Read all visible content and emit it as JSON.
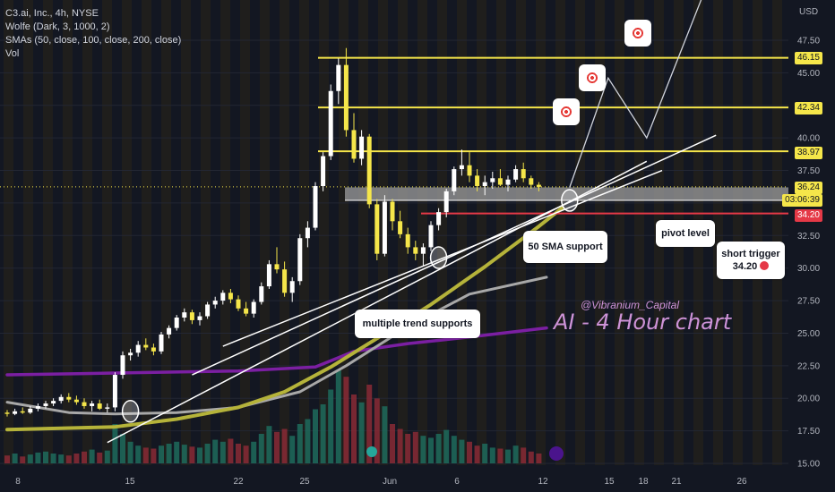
{
  "legend": {
    "symbol_line": "C3.ai, Inc., 4h, NYSE",
    "wolfe": "Wolfe (Dark, 3, 1000, 2)",
    "smas": "SMAs (50, close, 100, close, 200, close)",
    "vol": "Vol"
  },
  "price_axis": {
    "currency": "USD",
    "ticks": [
      "47.50",
      "45.00",
      "42.50",
      "40.00",
      "37.50",
      "35.00",
      "32.50",
      "30.00",
      "27.50",
      "25.00",
      "22.50",
      "20.00",
      "17.50",
      "15.00"
    ]
  },
  "price_tags": {
    "l1": "46.15",
    "l2": "42.34",
    "l3": "38.97",
    "last": "36.24",
    "countdown": "03:06:39",
    "red": "34.20"
  },
  "time_axis": {
    "ticks": [
      "8",
      "15",
      "22",
      "25",
      "Jun",
      "6",
      "12",
      "15",
      "18",
      "21",
      "26"
    ]
  },
  "annotations": {
    "trend": "multiple trend supports",
    "sma": "50 SMA support",
    "pivot": "pivot level",
    "short": "short trigger",
    "short_val": "34.20",
    "watermark": "@Vibranium_Capital",
    "big": "AI - 4 Hour chart"
  },
  "colors": {
    "background": "#131722",
    "up": "#ffffff",
    "down": "#f5e64a",
    "sma50": "#b5b33a",
    "sma100": "#a8a8a8",
    "sma200": "#7b1fa2",
    "resistance": "#f5e64a",
    "short_line": "#e53947",
    "pivot_band": "#9e9e9e",
    "watermark": "#ce93d8"
  },
  "chart_data": {
    "type": "candlestick",
    "title": "C3.ai, Inc., 4h, NYSE",
    "ylim": [
      15,
      50
    ],
    "horizontal_levels": [
      46.15,
      42.34,
      38.97,
      34.2
    ],
    "last_price": 36.24,
    "pivot_band": [
      35.2,
      36.2
    ],
    "candles": [
      [
        18.9,
        19.1,
        18.6,
        18.8
      ],
      [
        18.8,
        19.2,
        18.7,
        19.0
      ],
      [
        19.0,
        19.3,
        18.8,
        18.9
      ],
      [
        18.9,
        19.4,
        18.8,
        19.2
      ],
      [
        19.2,
        19.6,
        19.0,
        19.4
      ],
      [
        19.4,
        19.8,
        19.2,
        19.6
      ],
      [
        19.6,
        20.0,
        19.4,
        19.8
      ],
      [
        19.8,
        20.3,
        19.6,
        20.1
      ],
      [
        20.1,
        20.4,
        19.7,
        19.9
      ],
      [
        19.9,
        20.2,
        19.5,
        19.7
      ],
      [
        19.7,
        20.0,
        19.2,
        19.4
      ],
      [
        19.4,
        19.8,
        19.0,
        19.6
      ],
      [
        19.6,
        19.9,
        19.1,
        19.2
      ],
      [
        19.2,
        19.6,
        18.9,
        19.3
      ],
      [
        19.3,
        22.0,
        19.0,
        21.8
      ],
      [
        21.8,
        23.6,
        21.5,
        23.3
      ],
      [
        23.3,
        23.8,
        22.9,
        23.5
      ],
      [
        23.5,
        24.4,
        23.2,
        24.1
      ],
      [
        24.1,
        24.6,
        23.7,
        23.9
      ],
      [
        23.9,
        24.2,
        23.3,
        23.6
      ],
      [
        23.6,
        25.1,
        23.4,
        24.9
      ],
      [
        24.9,
        25.6,
        24.6,
        25.4
      ],
      [
        25.4,
        26.4,
        25.2,
        26.2
      ],
      [
        26.2,
        26.9,
        25.9,
        26.6
      ],
      [
        26.6,
        26.8,
        25.7,
        26.0
      ],
      [
        26.0,
        26.6,
        25.6,
        26.3
      ],
      [
        26.3,
        27.4,
        26.1,
        27.2
      ],
      [
        27.2,
        27.8,
        26.9,
        27.5
      ],
      [
        27.5,
        28.3,
        27.2,
        28.1
      ],
      [
        28.1,
        28.4,
        27.3,
        27.6
      ],
      [
        27.6,
        27.9,
        26.7,
        26.9
      ],
      [
        26.9,
        27.4,
        26.3,
        26.5
      ],
      [
        26.5,
        27.6,
        26.2,
        27.4
      ],
      [
        27.4,
        28.9,
        27.2,
        28.6
      ],
      [
        28.6,
        30.6,
        28.4,
        30.3
      ],
      [
        30.3,
        31.6,
        29.6,
        29.9
      ],
      [
        29.9,
        30.5,
        27.8,
        28.1
      ],
      [
        28.1,
        29.3,
        27.4,
        29.0
      ],
      [
        29.0,
        32.6,
        28.7,
        32.3
      ],
      [
        32.3,
        33.6,
        31.6,
        33.1
      ],
      [
        33.1,
        36.6,
        32.9,
        36.3
      ],
      [
        36.3,
        38.9,
        35.9,
        38.6
      ],
      [
        38.6,
        44.1,
        38.3,
        43.6
      ],
      [
        43.6,
        46.1,
        42.6,
        45.6
      ],
      [
        45.6,
        46.9,
        40.1,
        40.6
      ],
      [
        40.6,
        41.9,
        38.1,
        38.4
      ],
      [
        38.4,
        40.6,
        37.9,
        40.1
      ],
      [
        40.1,
        40.3,
        34.6,
        34.9
      ],
      [
        34.9,
        35.3,
        30.6,
        31.1
      ],
      [
        31.1,
        35.6,
        30.9,
        35.1
      ],
      [
        35.1,
        35.3,
        32.9,
        33.6
      ],
      [
        33.6,
        34.4,
        32.3,
        32.6
      ],
      [
        32.6,
        33.1,
        31.1,
        31.6
      ],
      [
        31.6,
        32.1,
        30.6,
        31.1
      ],
      [
        31.1,
        31.9,
        30.2,
        31.6
      ],
      [
        31.6,
        33.6,
        31.3,
        33.3
      ],
      [
        33.3,
        34.6,
        32.9,
        34.3
      ],
      [
        34.3,
        36.1,
        33.9,
        35.9
      ],
      [
        35.9,
        37.8,
        35.6,
        37.6
      ],
      [
        37.6,
        39.1,
        37.1,
        37.9
      ],
      [
        37.9,
        38.9,
        36.6,
        37.1
      ],
      [
        37.1,
        37.6,
        35.9,
        36.3
      ],
      [
        36.3,
        37.1,
        35.6,
        36.6
      ],
      [
        36.6,
        37.4,
        36.1,
        36.9
      ],
      [
        36.9,
        37.6,
        36.3,
        36.4
      ],
      [
        36.4,
        37.1,
        35.9,
        36.8
      ],
      [
        36.8,
        37.9,
        36.6,
        37.6
      ],
      [
        37.6,
        38.1,
        36.6,
        36.9
      ],
      [
        36.9,
        37.1,
        36.1,
        36.4
      ],
      [
        36.4,
        36.6,
        35.9,
        36.24
      ]
    ],
    "volume_max": 100,
    "volume": [
      8,
      10,
      7,
      9,
      11,
      12,
      10,
      9,
      8,
      10,
      12,
      14,
      11,
      13,
      40,
      30,
      22,
      18,
      16,
      15,
      18,
      20,
      22,
      19,
      17,
      16,
      20,
      24,
      22,
      25,
      20,
      18,
      22,
      30,
      38,
      32,
      35,
      28,
      40,
      45,
      55,
      60,
      75,
      95,
      88,
      70,
      62,
      80,
      66,
      58,
      40,
      35,
      30,
      32,
      28,
      26,
      30,
      34,
      28,
      24,
      22,
      18,
      20,
      16,
      15,
      14,
      18,
      16,
      12,
      10
    ],
    "sma50": [
      [
        0,
        17.6
      ],
      [
        14,
        17.8
      ],
      [
        22,
        18.4
      ],
      [
        30,
        19.3
      ],
      [
        36,
        20.5
      ],
      [
        42,
        22.4
      ],
      [
        48,
        24.6
      ],
      [
        55,
        27.2
      ],
      [
        62,
        30.1
      ],
      [
        69,
        33.2
      ],
      [
        72,
        34.6
      ]
    ],
    "sma100": [
      [
        0,
        19.7
      ],
      [
        8,
        18.9
      ],
      [
        14,
        18.8
      ],
      [
        22,
        18.9
      ],
      [
        30,
        19.3
      ],
      [
        38,
        20.5
      ],
      [
        44,
        22.5
      ],
      [
        52,
        25.5
      ],
      [
        60,
        28.0
      ],
      [
        70,
        29.3
      ]
    ],
    "sma200": [
      [
        0,
        21.8
      ],
      [
        10,
        21.9
      ],
      [
        20,
        22.0
      ],
      [
        30,
        22.1
      ],
      [
        40,
        22.4
      ],
      [
        45,
        23.6
      ],
      [
        52,
        24.2
      ],
      [
        60,
        24.7
      ],
      [
        70,
        25.4
      ]
    ],
    "trendlines": [
      [
        [
          13,
          16.6
        ],
        [
          83,
          38.2
        ]
      ],
      [
        [
          24,
          21.8
        ],
        [
          92,
          40.2
        ]
      ],
      [
        [
          28,
          24.0
        ],
        [
          85,
          37.5
        ]
      ]
    ],
    "wolfe_path": [
      [
        73,
        36.2
      ],
      [
        78,
        44.6
      ],
      [
        83,
        40.0
      ],
      [
        91,
        52.0
      ]
    ],
    "x_ticks": [
      "8",
      "15",
      "22",
      "25",
      "Jun",
      "6",
      "12",
      "15",
      "18",
      "21",
      "26"
    ]
  }
}
